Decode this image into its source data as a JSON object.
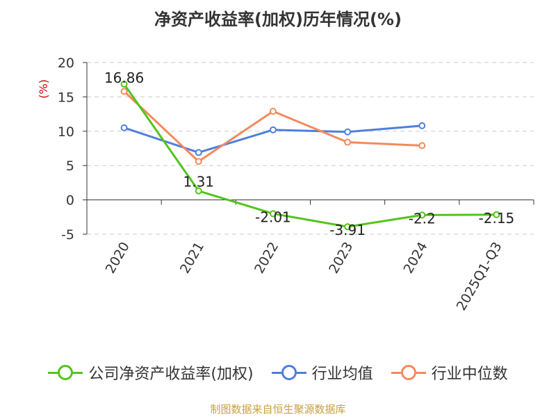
{
  "title": "净资产收益率(加权)历年情况(%)",
  "source": "制图数据来自恒生聚源数据库",
  "colors": {
    "company": "#52c41a",
    "industry_avg": "#4f7fdb",
    "industry_median": "#f5895b",
    "ylabel": "#cc0000",
    "source": "#c8a040",
    "grid": "#cccccc",
    "axis": "#333333"
  },
  "chart_data": {
    "type": "line",
    "categories": [
      "2020",
      "2021",
      "2022",
      "2023",
      "2024",
      "2025Q1-Q3"
    ],
    "ylabel": "(%)",
    "ylim": [
      -5,
      20
    ],
    "yticks": [
      -5,
      0,
      5,
      10,
      15,
      20
    ],
    "grid": true,
    "legend_position": "bottom",
    "series": [
      {
        "name": "公司净资产收益率(加权)",
        "key": "company",
        "values": [
          16.86,
          1.31,
          -2.01,
          -3.91,
          -2.2,
          -2.15
        ],
        "labels": [
          "16.86",
          "1.31",
          "-2.01",
          "-3.91",
          "-2.2",
          "-2.15"
        ]
      },
      {
        "name": "行业均值",
        "key": "industry_avg",
        "values": [
          10.5,
          6.9,
          10.2,
          9.9,
          10.8,
          null
        ]
      },
      {
        "name": "行业中位数",
        "key": "industry_median",
        "values": [
          15.8,
          5.6,
          12.9,
          8.4,
          7.9,
          null
        ]
      }
    ]
  }
}
